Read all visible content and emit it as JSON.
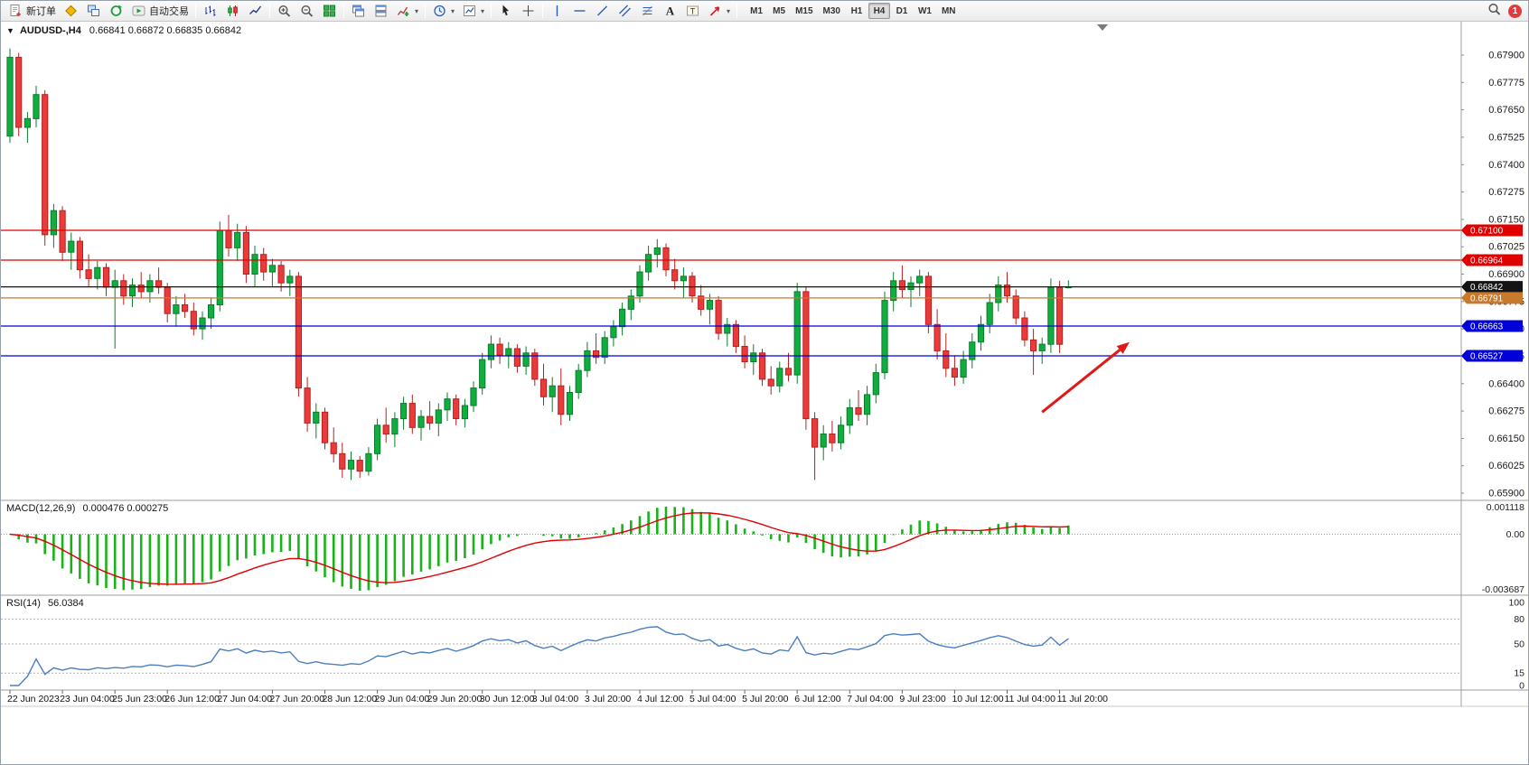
{
  "window": {
    "app": "MetaTrader 4",
    "title": "AUDUSD-,H4"
  },
  "toolbar": {
    "buttons": [
      {
        "name": "new-order-button",
        "icon": "new-order-icon",
        "label": "新订单"
      },
      {
        "name": "marketwatch-button",
        "icon": "gold-box-icon"
      },
      {
        "name": "chart-windows-button",
        "icon": "windows-icon"
      },
      {
        "name": "navigator-button",
        "icon": "refresh-icon"
      },
      {
        "name": "autotrading-button",
        "icon": "autotrading-icon",
        "label": "自动交易"
      },
      {
        "sep": true
      },
      {
        "name": "bar-chart-button",
        "icon": "bars-icon"
      },
      {
        "name": "candlestick-chart-button",
        "icon": "candles-icon"
      },
      {
        "name": "line-chart-button",
        "icon": "line-icon"
      },
      {
        "sep": true
      },
      {
        "name": "zoom-in-button",
        "icon": "zoom-in-icon"
      },
      {
        "name": "zoom-out-button",
        "icon": "zoom-out-icon"
      },
      {
        "name": "tile-windows-button",
        "icon": "tile-icon"
      },
      {
        "sep": true
      },
      {
        "name": "cascade-windows-button",
        "icon": "cascade-icon"
      },
      {
        "name": "stack-windows-button",
        "icon": "stack-icon"
      },
      {
        "name": "indicators-button",
        "icon": "indicators-icon",
        "caret": true
      },
      {
        "sep": true
      },
      {
        "name": "periods-button",
        "icon": "clock-icon",
        "caret": true
      },
      {
        "name": "templates-button",
        "icon": "template-icon",
        "caret": true
      },
      {
        "sep": true
      },
      {
        "name": "cursor-button",
        "icon": "cursor-icon"
      },
      {
        "name": "crosshair-button",
        "icon": "crosshair-icon"
      },
      {
        "sep": true
      },
      {
        "name": "vertical-line-button",
        "icon": "vline-icon"
      },
      {
        "name": "horizontal-line-button",
        "icon": "hline-icon"
      },
      {
        "name": "trendline-button",
        "icon": "trendline-icon"
      },
      {
        "name": "channel-button",
        "icon": "channel-icon"
      },
      {
        "name": "fibonacci-button",
        "icon": "fibo-icon"
      },
      {
        "name": "text-button",
        "icon": "text-icon"
      },
      {
        "name": "label-button",
        "icon": "label-icon"
      },
      {
        "name": "arrows-button",
        "icon": "arrow-icon",
        "caret": true
      },
      {
        "sep": true
      }
    ],
    "timeframes": {
      "items": [
        "M1",
        "M5",
        "M15",
        "M30",
        "H1",
        "H4",
        "D1",
        "W1",
        "MN"
      ],
      "active": "H4"
    },
    "notification_count": "1"
  },
  "chart": {
    "title": "AUDUSD-,H4",
    "ohlc": "0.66841 0.66872 0.66835 0.66842",
    "price_axis": {
      "max": 0.679,
      "min": 0.659,
      "step": 0.00125,
      "decimals": 5
    },
    "levels": [
      {
        "price": 0.671,
        "label": "0.67100",
        "color": "#e00000",
        "current": false
      },
      {
        "price": 0.66964,
        "label": "0.66964",
        "color": "#e00000",
        "current": false
      },
      {
        "price": 0.66842,
        "label": "0.66842",
        "color": "#141414",
        "current": true
      },
      {
        "price": 0.66791,
        "label": "0.66791",
        "color": "#c8792b",
        "current": false
      },
      {
        "price": 0.66663,
        "label": "0.66663",
        "color": "#0000d8",
        "current": false
      },
      {
        "price": 0.66527,
        "label": "0.66527",
        "color": "#0000d8",
        "current": false
      }
    ],
    "colors": {
      "up": "#0fae3e",
      "up_border": "#0a7c2c",
      "down": "#ea3b3b",
      "down_border": "#b81f1f",
      "background": "#ffffff"
    },
    "arrow": {
      "from_candle": 118,
      "from_price": 0.6627,
      "to_candle": 128,
      "to_price": 0.6659,
      "color": "#e01818"
    }
  },
  "indicators": {
    "macd": {
      "label": "MACD(12,26,9)",
      "values_text": "0.000476 0.000275",
      "fast": 12,
      "slow": 26,
      "signal": 9,
      "axis_labels": [
        "0.001118",
        "0.00",
        "-0.003687"
      ],
      "histogram_color": "#19b219",
      "signal_color": "#e00000"
    },
    "rsi": {
      "label": "RSI(14)",
      "value_text": "56.0384",
      "period": 14,
      "axis_labels": [
        "100",
        "80",
        "50",
        "15",
        "0"
      ],
      "dashed_levels": [
        80,
        50,
        15
      ],
      "line_color": "#4a7ebf"
    }
  },
  "chart_data": {
    "type": "candlestick",
    "title": "AUDUSD-,H4",
    "symbol": "AUDUSD-",
    "timeframe": "H4",
    "ylim": [
      0.659,
      0.679
    ],
    "y_tick_step": 0.00125,
    "x_label_every": 6,
    "x_labels": [
      "22 Jun 2023",
      "23 Jun 04:00",
      "25 Jun 23:00",
      "26 Jun 12:00",
      "27 Jun 04:00",
      "27 Jun 20:00",
      "28 Jun 12:00",
      "29 Jun 04:00",
      "29 Jun 20:00",
      "30 Jun 12:00",
      "3 Jul 04:00",
      "3 Jul 20:00",
      "4 Jul 12:00",
      "5 Jul 04:00",
      "5 Jul 20:00",
      "6 Jul 12:00",
      "7 Jul 04:00",
      "9 Jul 23:00",
      "10 Jul 12:00",
      "11 Jul 04:00",
      "11 Jul 20:00"
    ],
    "candles": [
      [
        0.6753,
        0.6793,
        0.675,
        0.6789
      ],
      [
        0.6789,
        0.6791,
        0.6753,
        0.6757
      ],
      [
        0.6757,
        0.6764,
        0.675,
        0.6761
      ],
      [
        0.6761,
        0.6776,
        0.6757,
        0.6772
      ],
      [
        0.6772,
        0.6774,
        0.6703,
        0.6708
      ],
      [
        0.6708,
        0.6722,
        0.6702,
        0.6719
      ],
      [
        0.6719,
        0.6721,
        0.6696,
        0.67
      ],
      [
        0.67,
        0.6709,
        0.6692,
        0.6705
      ],
      [
        0.6705,
        0.6707,
        0.6688,
        0.6692
      ],
      [
        0.6692,
        0.6699,
        0.6684,
        0.6688
      ],
      [
        0.6688,
        0.6696,
        0.6683,
        0.6693
      ],
      [
        0.6693,
        0.6695,
        0.668,
        0.6684
      ],
      [
        0.6684,
        0.6692,
        0.6656,
        0.6687
      ],
      [
        0.6687,
        0.669,
        0.6676,
        0.668
      ],
      [
        0.668,
        0.6688,
        0.6675,
        0.6685
      ],
      [
        0.6685,
        0.6691,
        0.6679,
        0.6682
      ],
      [
        0.6682,
        0.669,
        0.6677,
        0.6687
      ],
      [
        0.6687,
        0.6693,
        0.6681,
        0.6684
      ],
      [
        0.6684,
        0.6686,
        0.6668,
        0.6672
      ],
      [
        0.6672,
        0.668,
        0.6666,
        0.6676
      ],
      [
        0.6676,
        0.6681,
        0.667,
        0.6673
      ],
      [
        0.6673,
        0.6677,
        0.6662,
        0.6665
      ],
      [
        0.6665,
        0.6673,
        0.666,
        0.667
      ],
      [
        0.667,
        0.6679,
        0.6665,
        0.6676
      ],
      [
        0.6676,
        0.6714,
        0.6673,
        0.671
      ],
      [
        0.671,
        0.6717,
        0.6698,
        0.6702
      ],
      [
        0.6702,
        0.6713,
        0.6696,
        0.6709
      ],
      [
        0.6709,
        0.6712,
        0.6686,
        0.669
      ],
      [
        0.669,
        0.6703,
        0.6684,
        0.6699
      ],
      [
        0.6699,
        0.6702,
        0.6687,
        0.6691
      ],
      [
        0.6691,
        0.6697,
        0.6684,
        0.6694
      ],
      [
        0.6694,
        0.6696,
        0.6682,
        0.6686
      ],
      [
        0.6686,
        0.6692,
        0.668,
        0.6689
      ],
      [
        0.6689,
        0.6691,
        0.6634,
        0.6638
      ],
      [
        0.6638,
        0.6643,
        0.6618,
        0.6622
      ],
      [
        0.6622,
        0.6631,
        0.6615,
        0.6627
      ],
      [
        0.6627,
        0.6629,
        0.661,
        0.6613
      ],
      [
        0.6613,
        0.662,
        0.6604,
        0.6608
      ],
      [
        0.6608,
        0.6613,
        0.6597,
        0.6601
      ],
      [
        0.6601,
        0.6609,
        0.6596,
        0.6605
      ],
      [
        0.6605,
        0.6607,
        0.6597,
        0.66
      ],
      [
        0.66,
        0.6611,
        0.6598,
        0.6608
      ],
      [
        0.6608,
        0.6624,
        0.6605,
        0.6621
      ],
      [
        0.6621,
        0.6629,
        0.6613,
        0.6617
      ],
      [
        0.6617,
        0.6627,
        0.6611,
        0.6624
      ],
      [
        0.6624,
        0.6634,
        0.6619,
        0.6631
      ],
      [
        0.6631,
        0.6635,
        0.6617,
        0.662
      ],
      [
        0.662,
        0.6628,
        0.6614,
        0.6625
      ],
      [
        0.6625,
        0.6632,
        0.6619,
        0.6622
      ],
      [
        0.6622,
        0.6631,
        0.6616,
        0.6628
      ],
      [
        0.6628,
        0.6636,
        0.6623,
        0.6633
      ],
      [
        0.6633,
        0.6635,
        0.6621,
        0.6624
      ],
      [
        0.6624,
        0.6633,
        0.662,
        0.663
      ],
      [
        0.663,
        0.6641,
        0.6627,
        0.6638
      ],
      [
        0.6638,
        0.6654,
        0.6635,
        0.6651
      ],
      [
        0.6651,
        0.6662,
        0.6647,
        0.6658
      ],
      [
        0.6658,
        0.6661,
        0.6649,
        0.6653
      ],
      [
        0.6653,
        0.6659,
        0.6647,
        0.6656
      ],
      [
        0.6656,
        0.6658,
        0.6645,
        0.6648
      ],
      [
        0.6648,
        0.6657,
        0.6644,
        0.6654
      ],
      [
        0.6654,
        0.6656,
        0.6639,
        0.6642
      ],
      [
        0.6642,
        0.6649,
        0.663,
        0.6634
      ],
      [
        0.6634,
        0.6643,
        0.6627,
        0.6639
      ],
      [
        0.6639,
        0.6647,
        0.6621,
        0.6626
      ],
      [
        0.6626,
        0.6639,
        0.6623,
        0.6636
      ],
      [
        0.6636,
        0.6649,
        0.6633,
        0.6646
      ],
      [
        0.6646,
        0.6659,
        0.6643,
        0.6655
      ],
      [
        0.6655,
        0.6663,
        0.6649,
        0.6652
      ],
      [
        0.6652,
        0.6664,
        0.6649,
        0.6661
      ],
      [
        0.6661,
        0.6669,
        0.6657,
        0.6666
      ],
      [
        0.6666,
        0.6677,
        0.6662,
        0.6674
      ],
      [
        0.6674,
        0.6683,
        0.6669,
        0.668
      ],
      [
        0.668,
        0.6694,
        0.6677,
        0.6691
      ],
      [
        0.6691,
        0.6703,
        0.6687,
        0.6699
      ],
      [
        0.6699,
        0.6706,
        0.6693,
        0.6702
      ],
      [
        0.6702,
        0.6704,
        0.6689,
        0.6692
      ],
      [
        0.6692,
        0.6697,
        0.6683,
        0.6687
      ],
      [
        0.6687,
        0.6693,
        0.6679,
        0.6689
      ],
      [
        0.6689,
        0.6691,
        0.6677,
        0.668
      ],
      [
        0.668,
        0.6685,
        0.6671,
        0.6674
      ],
      [
        0.6674,
        0.6681,
        0.6667,
        0.6678
      ],
      [
        0.6678,
        0.668,
        0.666,
        0.6663
      ],
      [
        0.6663,
        0.667,
        0.6657,
        0.6667
      ],
      [
        0.6667,
        0.6669,
        0.6654,
        0.6657
      ],
      [
        0.6657,
        0.6662,
        0.6647,
        0.665
      ],
      [
        0.665,
        0.6658,
        0.6644,
        0.6654
      ],
      [
        0.6654,
        0.6656,
        0.6639,
        0.6642
      ],
      [
        0.6642,
        0.6648,
        0.6635,
        0.6639
      ],
      [
        0.6639,
        0.665,
        0.6636,
        0.6647
      ],
      [
        0.6647,
        0.6654,
        0.6641,
        0.6644
      ],
      [
        0.6644,
        0.6686,
        0.664,
        0.6682
      ],
      [
        0.6682,
        0.6684,
        0.6619,
        0.6624
      ],
      [
        0.6624,
        0.6627,
        0.6596,
        0.6611
      ],
      [
        0.6611,
        0.6621,
        0.6605,
        0.6617
      ],
      [
        0.6617,
        0.6623,
        0.6609,
        0.6613
      ],
      [
        0.6613,
        0.6625,
        0.661,
        0.6621
      ],
      [
        0.6621,
        0.6633,
        0.6617,
        0.6629
      ],
      [
        0.6629,
        0.6637,
        0.6623,
        0.6626
      ],
      [
        0.6626,
        0.6639,
        0.6621,
        0.6635
      ],
      [
        0.6635,
        0.6649,
        0.6631,
        0.6645
      ],
      [
        0.6645,
        0.6682,
        0.6642,
        0.6678
      ],
      [
        0.6678,
        0.6691,
        0.6673,
        0.6687
      ],
      [
        0.6687,
        0.6694,
        0.6679,
        0.6683
      ],
      [
        0.6683,
        0.6689,
        0.6675,
        0.6686
      ],
      [
        0.6686,
        0.6692,
        0.668,
        0.6689
      ],
      [
        0.6689,
        0.6691,
        0.6663,
        0.6667
      ],
      [
        0.6667,
        0.6674,
        0.6651,
        0.6655
      ],
      [
        0.6655,
        0.6663,
        0.6643,
        0.6647
      ],
      [
        0.6647,
        0.6653,
        0.6639,
        0.6643
      ],
      [
        0.6643,
        0.6655,
        0.664,
        0.6651
      ],
      [
        0.6651,
        0.6663,
        0.6647,
        0.6659
      ],
      [
        0.6659,
        0.6671,
        0.6655,
        0.6667
      ],
      [
        0.6667,
        0.6681,
        0.6663,
        0.6677
      ],
      [
        0.6677,
        0.6689,
        0.6673,
        0.6685
      ],
      [
        0.6685,
        0.6691,
        0.6677,
        0.668
      ],
      [
        0.668,
        0.6683,
        0.6667,
        0.667
      ],
      [
        0.667,
        0.6673,
        0.6657,
        0.666
      ],
      [
        0.666,
        0.6665,
        0.6644,
        0.6655
      ],
      [
        0.6655,
        0.6661,
        0.6649,
        0.6658
      ],
      [
        0.6658,
        0.6688,
        0.6654,
        0.6684
      ],
      [
        0.6684,
        0.6687,
        0.6654,
        0.6658
      ],
      [
        0.66841,
        0.66872,
        0.66835,
        0.66842
      ]
    ]
  }
}
